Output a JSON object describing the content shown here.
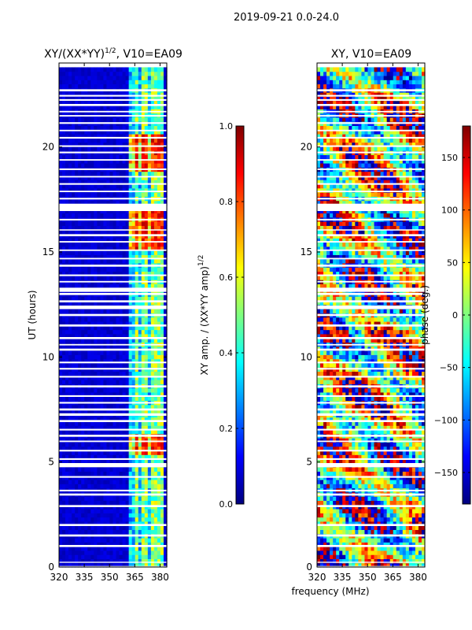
{
  "figure_title": "2019-09-21 0.0-24.0",
  "xlabel": "frequency (MHz)",
  "colors": {
    "jet": [
      "#00007f",
      "#0000ff",
      "#007fff",
      "#00ffff",
      "#7fff7f",
      "#ffff00",
      "#ff7f00",
      "#ff0000",
      "#7f0000"
    ],
    "gap": "#ffffff",
    "axis": "#000000"
  },
  "chart_data": [
    {
      "type": "heatmap",
      "title_main": "XY/(XX*YY)",
      "title_exp": "1/2",
      "title_suffix": ", V10=EA09",
      "xlabel": "",
      "ylabel": "UT (hours)",
      "xlim": [
        320,
        384
      ],
      "ylim": [
        0,
        24
      ],
      "x_ticks": [
        320,
        335,
        350,
        365,
        380
      ],
      "y_ticks": [
        0,
        5,
        10,
        15,
        20
      ],
      "colorbar": {
        "label_main": "XY amp. / (XX*YY amp)",
        "label_exp": "1/2",
        "range": [
          0.0,
          1.0
        ],
        "ticks": [
          "0.0",
          "0.2",
          "0.4",
          "0.6",
          "0.8",
          "1.0"
        ],
        "tick_values": [
          0.0,
          0.2,
          0.4,
          0.6,
          0.8,
          1.0
        ]
      },
      "structure": {
        "low_background_value": 0.05,
        "band_start_mhz": 361,
        "band_end_mhz": 381,
        "band_stripe_mhz": [
          365,
          370,
          375,
          379
        ],
        "bright_periods_hours": [
          [
            15.0,
            17.0
          ],
          [
            5.3,
            6.2
          ],
          [
            18.8,
            20.5
          ]
        ],
        "data_end_hour": 23.8
      }
    },
    {
      "type": "heatmap",
      "title_main": "XY, V10=EA09",
      "title_exp": "",
      "title_suffix": "",
      "xlabel": "",
      "ylabel": "",
      "xlim": [
        320,
        384
      ],
      "ylim": [
        0,
        24
      ],
      "x_ticks": [
        320,
        335,
        350,
        365,
        380
      ],
      "y_ticks": [
        0,
        5,
        10,
        15,
        20
      ],
      "colorbar": {
        "label_main": "phase (deg.)",
        "label_exp": "",
        "range": [
          -180,
          180
        ],
        "ticks": [
          "−150",
          "−100",
          "−50",
          "0",
          "50",
          "100",
          "150"
        ],
        "tick_values": [
          -150,
          -100,
          -50,
          0,
          50,
          100,
          150
        ]
      },
      "structure": {
        "phase_range_deg": [
          -180,
          180
        ],
        "data_end_hour": 23.8
      }
    }
  ],
  "missing_time_gaps_hours": [
    [
      0.0,
      0.05
    ],
    [
      0.2,
      0.25
    ],
    [
      0.95,
      1.05
    ],
    [
      1.45,
      1.55
    ],
    [
      1.95,
      2.05
    ],
    [
      2.85,
      2.95
    ],
    [
      3.4,
      3.5
    ],
    [
      3.6,
      3.68
    ],
    [
      4.25,
      4.33
    ],
    [
      4.75,
      4.95
    ],
    [
      5.1,
      5.18
    ],
    [
      5.5,
      5.58
    ],
    [
      5.95,
      6.02
    ],
    [
      6.2,
      6.3
    ],
    [
      6.5,
      6.58
    ],
    [
      6.9,
      7.0
    ],
    [
      7.2,
      7.32
    ],
    [
      7.45,
      7.55
    ],
    [
      7.78,
      7.86
    ],
    [
      8.1,
      8.18
    ],
    [
      8.55,
      8.65
    ],
    [
      9.02,
      9.1
    ],
    [
      9.4,
      9.48
    ],
    [
      9.7,
      9.78
    ],
    [
      10.3,
      10.4
    ],
    [
      10.55,
      10.62
    ],
    [
      10.85,
      10.95
    ],
    [
      11.45,
      11.55
    ],
    [
      11.95,
      12.05
    ],
    [
      12.28,
      12.45
    ],
    [
      12.6,
      12.7
    ],
    [
      12.95,
      13.05
    ],
    [
      13.1,
      13.3
    ],
    [
      13.55,
      13.62
    ],
    [
      13.85,
      13.93
    ],
    [
      14.3,
      14.4
    ],
    [
      14.65,
      14.72
    ],
    [
      15.05,
      15.12
    ],
    [
      15.45,
      15.52
    ],
    [
      15.75,
      15.85
    ],
    [
      16.02,
      16.08
    ],
    [
      16.5,
      16.58
    ],
    [
      16.95,
      17.3
    ],
    [
      17.5,
      17.58
    ],
    [
      17.85,
      17.92
    ],
    [
      18.2,
      18.28
    ],
    [
      18.55,
      18.62
    ],
    [
      18.9,
      18.98
    ],
    [
      19.35,
      19.42
    ],
    [
      19.7,
      19.78
    ],
    [
      20.0,
      20.08
    ],
    [
      20.4,
      20.48
    ],
    [
      20.75,
      20.82
    ],
    [
      21.1,
      21.18
    ],
    [
      21.45,
      21.52
    ],
    [
      21.65,
      21.72
    ],
    [
      21.95,
      22.05
    ],
    [
      22.2,
      22.28
    ],
    [
      22.4,
      22.48
    ],
    [
      22.65,
      22.75
    ]
  ]
}
